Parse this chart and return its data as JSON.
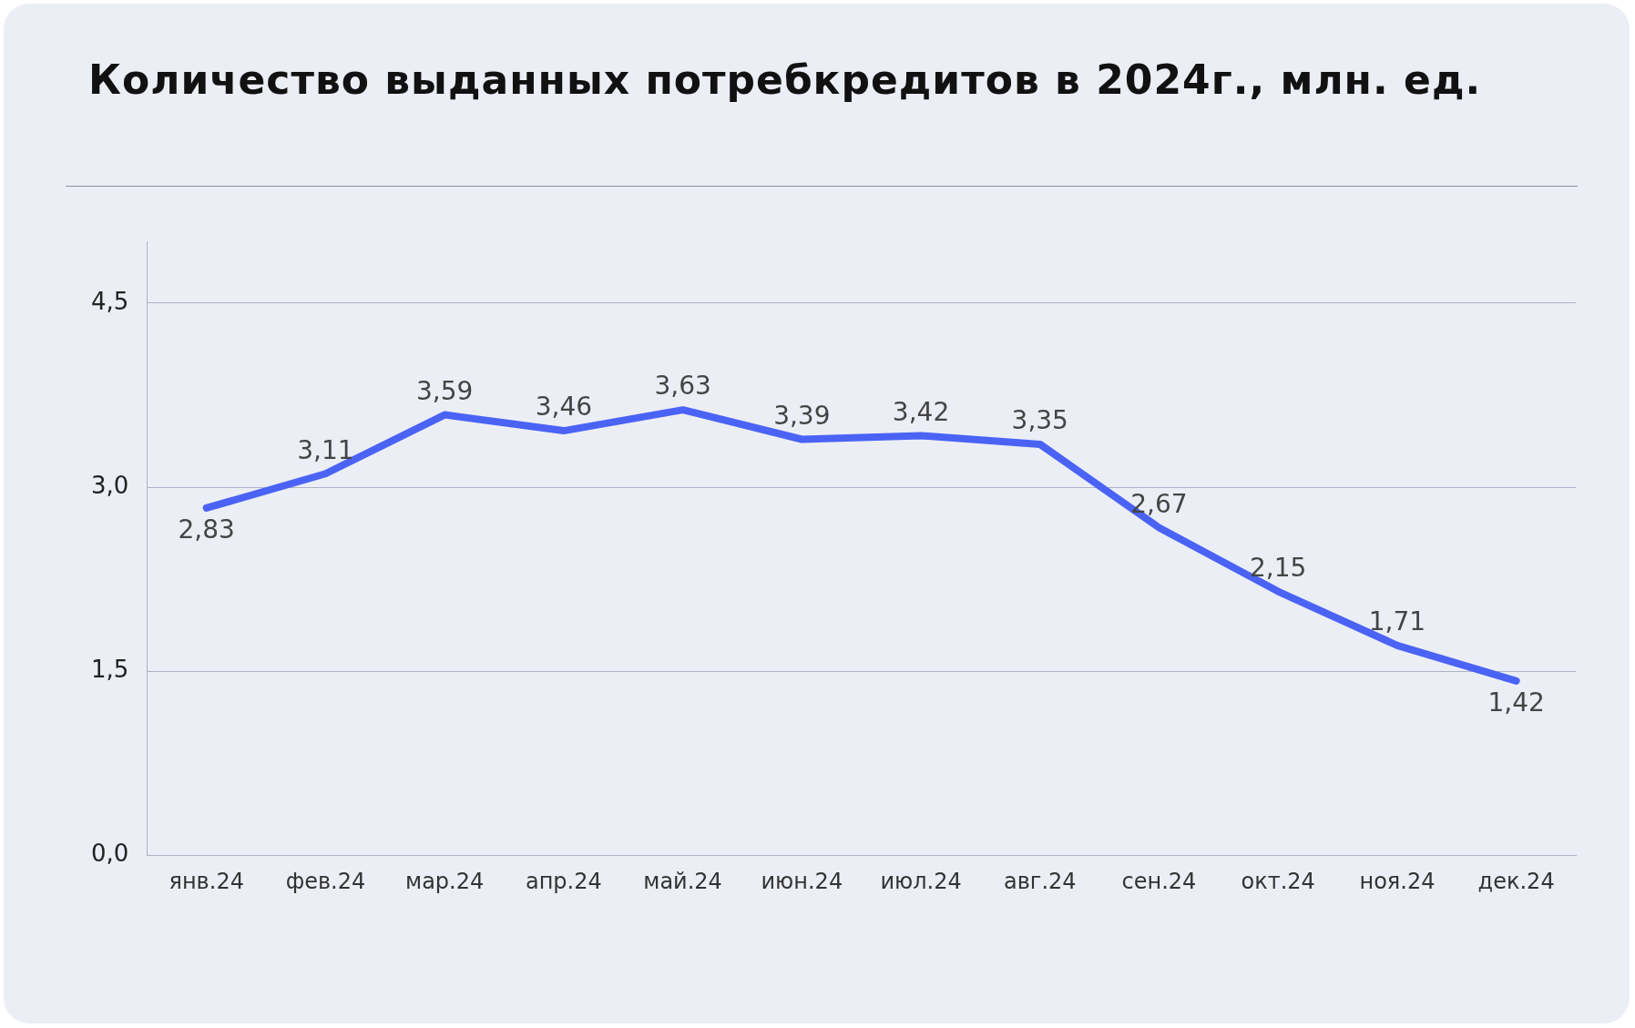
{
  "chart_data": {
    "type": "line",
    "title": "Количество выданных потребкредитов в 2024г., млн. ед.",
    "categories": [
      "янв.24",
      "фев.24",
      "мар.24",
      "апр.24",
      "май.24",
      "июн.24",
      "июл.24",
      "авг.24",
      "сен.24",
      "окт.24",
      "ноя.24",
      "дек.24"
    ],
    "series": [
      {
        "color": "#4a63f5",
        "values": [
          2.83,
          3.11,
          3.59,
          3.46,
          3.63,
          3.39,
          3.42,
          3.35,
          2.67,
          2.15,
          1.71,
          1.42
        ],
        "value_labels": [
          "2,83",
          "3,11",
          "3,59",
          "3,46",
          "3,63",
          "3,39",
          "3,42",
          "3,35",
          "2,67",
          "2,15",
          "1,71",
          "1,42"
        ]
      }
    ],
    "ylim": [
      0,
      5
    ],
    "yticks": [
      {
        "value": 0,
        "label": "0,0"
      },
      {
        "value": 1.5,
        "label": "1,5"
      },
      {
        "value": 3,
        "label": "3,0"
      },
      {
        "value": 4.5,
        "label": "4,5"
      }
    ],
    "grid": "y",
    "legend": false,
    "marker": "none",
    "line_style": "solid"
  }
}
